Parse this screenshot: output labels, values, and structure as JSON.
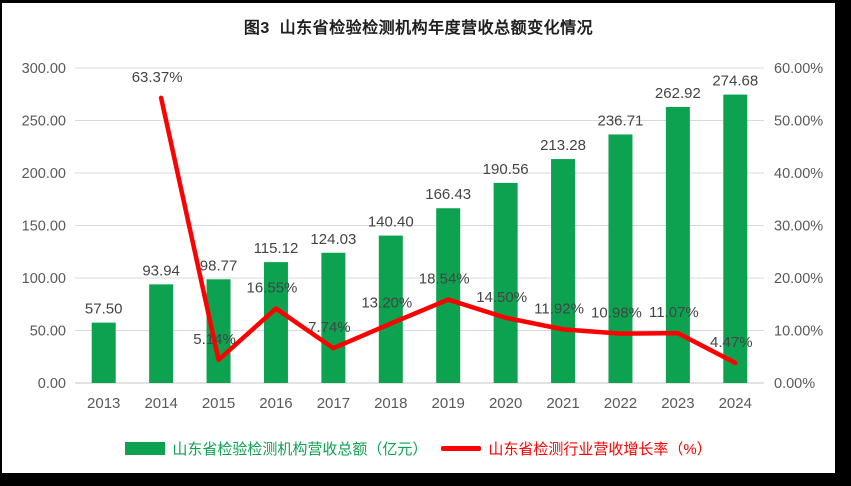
{
  "title": "图3  山东省检验检测机构年度营收总额变化情况",
  "legend": [
    {
      "label": "山东省检验检测机构营收总额（亿元）",
      "type": "bar",
      "color": "#0CA250"
    },
    {
      "label": "山东省检测行业营收增长率（%）",
      "type": "line",
      "color": "#FF0000"
    }
  ],
  "chart_data": {
    "type": "combo-bar-line",
    "title": "图3  山东省检验检测机构年度营收总额变化情况",
    "categories": [
      "2013",
      "2014",
      "2015",
      "2016",
      "2017",
      "2018",
      "2019",
      "2020",
      "2021",
      "2022",
      "2023",
      "2024"
    ],
    "series": [
      {
        "name": "山东省检验检测机构营收总额（亿元）",
        "type": "bar",
        "axis": "left",
        "color": "#0CA250",
        "values": [
          57.5,
          93.94,
          98.77,
          115.12,
          124.03,
          140.4,
          166.43,
          190.56,
          213.28,
          236.71,
          262.92,
          274.68
        ]
      },
      {
        "name": "山东省检测行业营收增长率（%）",
        "type": "line",
        "axis": "right",
        "color": "#FF0000",
        "values": [
          null,
          63.37,
          5.14,
          16.55,
          7.74,
          13.2,
          18.54,
          14.5,
          11.92,
          10.98,
          11.07,
          4.47
        ]
      }
    ],
    "left_axis": {
      "min": 0,
      "max": 300,
      "step": 50,
      "format": "0.00"
    },
    "right_axis": {
      "min": 0,
      "max": 70,
      "step": 10,
      "format": "0.00%"
    },
    "grid": true,
    "legend_position": "bottom",
    "data_labels": true
  },
  "style": {
    "bar_color": "#0CA250",
    "line_color": "#FF0000",
    "grid_color": "#D9D9D9",
    "baseline_color": "#C6C6C6",
    "axis_text_color": "#595959",
    "data_label_color": "#444444",
    "title_color": "#1F1F1F",
    "frame_border_color": "#000000"
  }
}
